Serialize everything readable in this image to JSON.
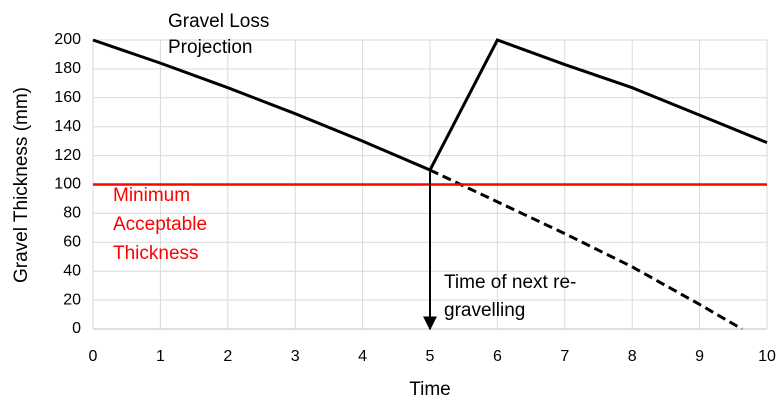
{
  "chart_data": {
    "type": "line",
    "xlabel": "Time",
    "ylabel": "Gravel Thickness (mm)",
    "xlim": [
      0,
      10
    ],
    "ylim": [
      0,
      200
    ],
    "xticks": [
      0,
      1,
      2,
      3,
      4,
      5,
      6,
      7,
      8,
      9,
      10
    ],
    "yticks": [
      0,
      20,
      40,
      60,
      80,
      100,
      120,
      140,
      160,
      180,
      200
    ],
    "grid": true,
    "series": [
      {
        "color": "#000000",
        "dash": false,
        "x": [
          0,
          1,
          2,
          3,
          4,
          5,
          6,
          7,
          8,
          9,
          10
        ],
        "values": [
          200,
          184,
          167,
          149,
          130,
          110,
          200,
          183,
          167,
          148,
          129
        ]
      },
      {
        "color": "#000000",
        "dash": true,
        "x": [
          5,
          6,
          7,
          8,
          9,
          9.63
        ],
        "values": [
          110,
          88,
          66,
          43,
          17,
          0
        ]
      },
      {
        "color": "#ff0000",
        "dash": false,
        "x": [
          0,
          10
        ],
        "values": [
          100,
          100
        ]
      }
    ],
    "annotations": [
      {
        "text": [
          "Gravel Loss",
          "Projection"
        ],
        "color": "#000000"
      },
      {
        "text": [
          "Minimum",
          "Acceptable",
          "Thickness"
        ],
        "color": "#ff0000"
      },
      {
        "text": [
          "Time of next re-",
          "gravelling"
        ],
        "color": "#000000",
        "x": 5,
        "y": 110
      }
    ]
  }
}
